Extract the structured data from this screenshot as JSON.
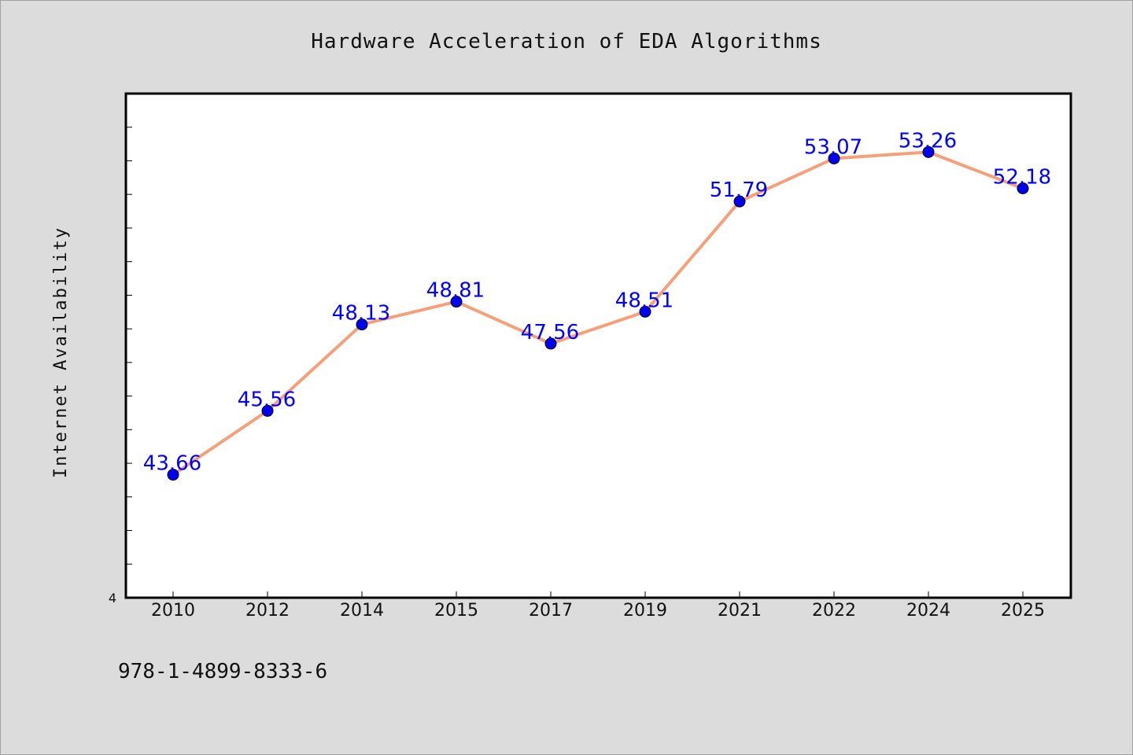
{
  "chart_data": {
    "type": "line",
    "title": "Hardware Acceleration of EDA Algorithms",
    "xlabel": "",
    "ylabel": "Internet Availability",
    "categories": [
      "2010",
      "2012",
      "2014",
      "2015",
      "2017",
      "2019",
      "2021",
      "2022",
      "2024",
      "2025"
    ],
    "series": [
      {
        "values": [
          43.66,
          45.56,
          48.13,
          48.81,
          47.56,
          48.51,
          51.79,
          53.07,
          53.26,
          52.18
        ],
        "data_labels": [
          "43.66",
          "45.56",
          "48.13",
          "48.81",
          "47.56",
          "48.51",
          "51.79",
          "53.07",
          "53.26",
          "52.18"
        ],
        "line_color": "#f4a07a",
        "marker_color": "#0000ee"
      }
    ],
    "y_tick_labels": [
      "4"
    ],
    "ylim": [
      40,
      55
    ],
    "grid": false,
    "legend": "none"
  },
  "footer": {
    "isbn": "978-1-4899-8333-6"
  }
}
